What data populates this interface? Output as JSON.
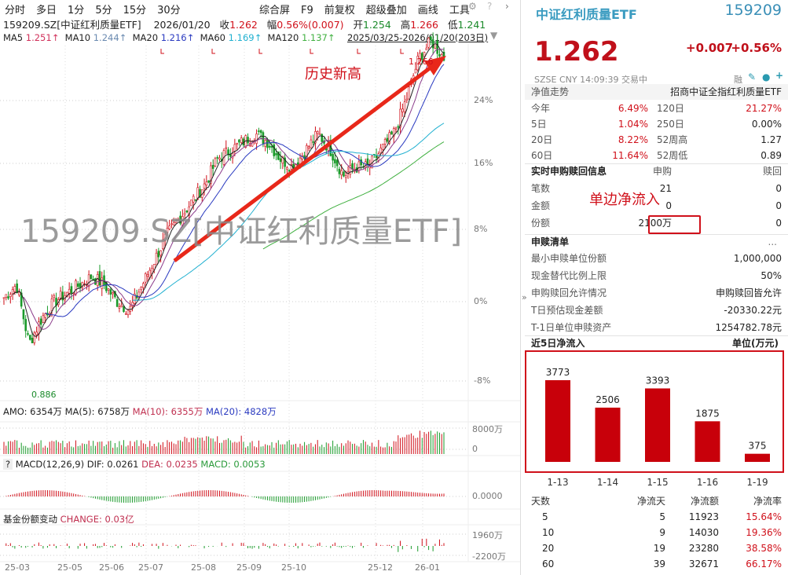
{
  "toolbar": {
    "left": [
      "分时",
      "多日",
      "1分",
      "5分",
      "15分",
      "30分"
    ],
    "right": [
      "综合屏",
      "F9",
      "前复权",
      "超级叠加",
      "画线",
      "工具"
    ]
  },
  "info": {
    "name": "159209.SZ[中证红利质量ETF]",
    "date": "2026/01/20",
    "close_label": "收",
    "close": "1.262",
    "chg_label": "幅",
    "chg": "0.56%(0.007)",
    "open_label": "开",
    "open": "1.254",
    "high_label": "高",
    "high": "1.266",
    "low_label": "低",
    "low": "1.241"
  },
  "ma": {
    "items": [
      {
        "label": "MA5",
        "value": "1.251↑",
        "color": "#d0305a"
      },
      {
        "label": "MA10",
        "value": "1.244↑",
        "color": "#6a8ab0"
      },
      {
        "label": "MA20",
        "value": "1.216↑",
        "color": "#2a3ac0"
      },
      {
        "label": "MA60",
        "value": "1.169↑",
        "color": "#20b0d0"
      },
      {
        "label": "MA120",
        "value": "1.137↑",
        "color": "#40b040"
      }
    ],
    "range": "2025/03/25-2026/01/20(203日)"
  },
  "main": {
    "watermark": "159209.SZ[中证红利质量ETF]",
    "annotation": "历史新高",
    "high_mark": "1.266",
    "low_mark": "0.886",
    "yticks": [
      "24%",
      "16%",
      "8%",
      "0%",
      "-8%"
    ],
    "close_pct_path": [
      0.5,
      2,
      -5,
      -2,
      0,
      1,
      2,
      3,
      2,
      0,
      -1,
      2,
      5,
      8,
      10,
      12,
      14,
      17,
      18,
      19,
      20,
      19,
      17,
      16,
      18,
      20,
      18,
      15,
      16,
      16,
      18,
      20,
      24,
      29,
      31,
      29
    ]
  },
  "amo": {
    "label": "AMO: 6354万",
    "ma5": "MA(5): 6758万",
    "ma10": "MA(10): 6355万",
    "ma20": "MA(20): 4828万",
    "yticks": [
      "8000万",
      "0"
    ]
  },
  "macd": {
    "help": "?",
    "label": "MACD(12,26,9)",
    "dif": "DIF: 0.0261",
    "dea": "DEA: 0.0235",
    "macd": "MACD: 0.0053",
    "ytick": "0.0000"
  },
  "share": {
    "label": "基金份额变动",
    "change": "CHANGE: 0.03亿",
    "yticks": [
      "1960万",
      "-2200万"
    ]
  },
  "xaxis": [
    "25-03",
    "25-05",
    "25-06",
    "25-07",
    "25-08",
    "25-09",
    "25-10",
    "25-12",
    "26-01"
  ],
  "quote": {
    "name": "中证红利质量ETF",
    "code": "159209",
    "price": "1.262",
    "change": "+0.007",
    "pct": "+0.56%",
    "meta": "SZSE  CNY  14:09:39  交易中",
    "rong": "融",
    "expand": "»"
  },
  "nav": {
    "title": "净值走势",
    "fund": "招商中证全指红利质量ETF",
    "rows": [
      [
        "今年",
        "6.49%",
        "120日",
        "21.27%"
      ],
      [
        "5日",
        "1.04%",
        "250日",
        "0.00%"
      ],
      [
        "20日",
        "8.22%",
        "52周高",
        "1.27"
      ],
      [
        "60日",
        "11.64%",
        "52周低",
        "0.89"
      ]
    ]
  },
  "realtime": {
    "title": "实时申购赎回信息",
    "col1": "申购",
    "col2": "赎回",
    "rows": [
      [
        "笔数",
        "21",
        "0"
      ],
      [
        "金额",
        "0",
        "0"
      ],
      [
        "份额",
        "2100万",
        "0"
      ]
    ],
    "annotation": "单边净流入"
  },
  "list": {
    "title": "申赎清单",
    "more": "...",
    "rows": [
      [
        "最小申赎单位份额",
        "1,000,000"
      ],
      [
        "现金替代比例上限",
        "50%"
      ],
      [
        "申购赎回允许情况",
        "申购赎回皆允许"
      ],
      [
        "T日预估现金差额",
        "-20330.22元"
      ],
      [
        "T-1日单位申赎资产",
        "1254782.78元"
      ]
    ]
  },
  "flow": {
    "title": "近5日净流入",
    "unit": "单位(万元)"
  },
  "chart_data": {
    "type": "bar",
    "categories": [
      "1-13",
      "1-14",
      "1-15",
      "1-16",
      "1-19"
    ],
    "values": [
      3773,
      2506,
      3393,
      1875,
      375
    ],
    "color": "#c8000a"
  },
  "stats": {
    "headers": [
      "天数",
      "净流天",
      "净流额",
      "净流率"
    ],
    "rows": [
      [
        "5",
        "5",
        "11923",
        "15.64%"
      ],
      [
        "10",
        "9",
        "14030",
        "19.36%"
      ],
      [
        "20",
        "19",
        "23280",
        "38.58%"
      ],
      [
        "60",
        "39",
        "32671",
        "66.17%"
      ]
    ]
  }
}
